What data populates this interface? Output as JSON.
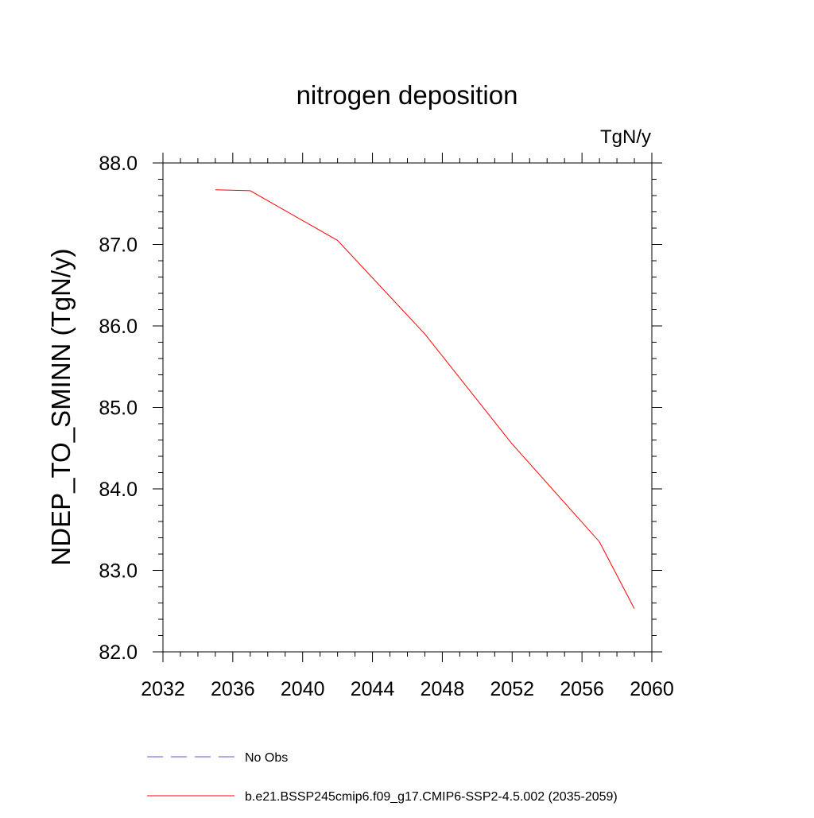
{
  "chart_data": {
    "type": "line",
    "title": "nitrogen deposition",
    "units_label": "TgN/y",
    "ylabel": "NDEP_TO_SMINN  (TgN/y)",
    "xlabel": "",
    "xlim": [
      2032,
      2060
    ],
    "ylim": [
      82.0,
      88.0
    ],
    "x_ticks": [
      2032,
      2036,
      2040,
      2044,
      2048,
      2052,
      2056,
      2060
    ],
    "x_tick_labels": [
      "2032",
      "2036",
      "2040",
      "2044",
      "2048",
      "2052",
      "2056",
      "2060"
    ],
    "y_ticks": [
      82.0,
      83.0,
      84.0,
      85.0,
      86.0,
      87.0,
      88.0
    ],
    "y_tick_labels": [
      "82.0",
      "83.0",
      "84.0",
      "85.0",
      "86.0",
      "87.0",
      "88.0"
    ],
    "grid": false,
    "legend_position": "bottom",
    "series": [
      {
        "name": "b.e21.BSSP245cmip6.f09_g17.CMIP6-SSP2-4.5.002 (2035-2059)",
        "color": "#ff0000",
        "style": "solid",
        "x": [
          2035,
          2037,
          2042,
          2047,
          2052,
          2057,
          2059
        ],
        "values": [
          87.67,
          87.66,
          87.05,
          85.9,
          84.55,
          83.35,
          82.53
        ]
      }
    ],
    "legend": [
      {
        "label": "No Obs",
        "color": "#6a5acd",
        "style": "dashed"
      },
      {
        "label": "b.e21.BSSP245cmip6.f09_g17.CMIP6-SSP2-4.5.002 (2035-2059)",
        "color": "#ff0000",
        "style": "solid"
      }
    ]
  }
}
